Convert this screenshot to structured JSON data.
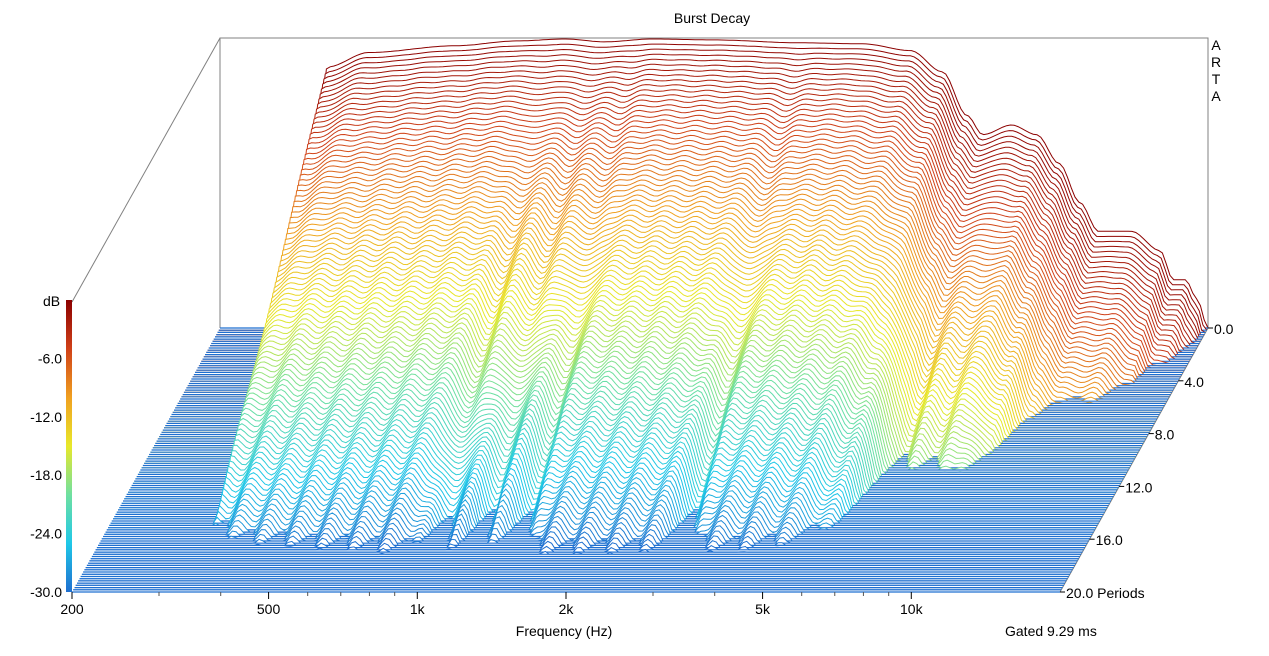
{
  "chart_data": {
    "type": "waterfall",
    "title": "Burst Decay",
    "brand": "ARTA",
    "xlabel": "Frequency (Hz)",
    "x_scale": "log",
    "x_range_hz": [
      200,
      20000
    ],
    "x_ticks": [
      {
        "value": 200,
        "label": "200"
      },
      {
        "value": 500,
        "label": "500"
      },
      {
        "value": 1000,
        "label": "1k"
      },
      {
        "value": 2000,
        "label": "2k"
      },
      {
        "value": 5000,
        "label": "5k"
      },
      {
        "value": 10000,
        "label": "10k"
      }
    ],
    "minor_ticks_hz": [
      300,
      400,
      600,
      700,
      800,
      900,
      3000,
      4000,
      6000,
      7000,
      8000,
      9000
    ],
    "z_label": "Periods",
    "z_range_periods": [
      0,
      20
    ],
    "z_ticks": [
      {
        "value": 0,
        "label": "0.0"
      },
      {
        "value": 4,
        "label": "4.0"
      },
      {
        "value": 8,
        "label": "8.0"
      },
      {
        "value": 12,
        "label": "12.0"
      },
      {
        "value": 16,
        "label": "16.0"
      },
      {
        "value": 20,
        "label": "20.0 Periods"
      }
    ],
    "colorbar": {
      "label": "dB",
      "range_db": [
        -30,
        0
      ],
      "ticks": [
        "-6.0",
        "-12.0",
        "-18.0",
        "-24.0",
        "-30.0"
      ],
      "tick_values": [
        -6,
        -12,
        -18,
        -24,
        -30
      ],
      "stops": [
        "#1f6fd0",
        "#1fc8e8",
        "#6fe0a0",
        "#e8e82a",
        "#f0a020",
        "#d04018",
        "#8b0000"
      ]
    },
    "gated_label": "Gated 9.29 ms",
    "slice_count": 120,
    "response_db_at_zero_periods": [
      {
        "hz": 300,
        "db": -30
      },
      {
        "hz": 330,
        "db": -3
      },
      {
        "hz": 400,
        "db": -1.5
      },
      {
        "hz": 600,
        "db": -0.8
      },
      {
        "hz": 800,
        "db": -0.3
      },
      {
        "hz": 1000,
        "db": -0.1
      },
      {
        "hz": 1200,
        "db": -0.4
      },
      {
        "hz": 1500,
        "db": -0.1
      },
      {
        "hz": 2000,
        "db": -0.2
      },
      {
        "hz": 3000,
        "db": -0.5
      },
      {
        "hz": 4000,
        "db": -0.6
      },
      {
        "hz": 5000,
        "db": -1.3
      },
      {
        "hz": 5800,
        "db": -3.5
      },
      {
        "hz": 6500,
        "db": -8
      },
      {
        "hz": 7000,
        "db": -10
      },
      {
        "hz": 8000,
        "db": -9
      },
      {
        "hz": 9000,
        "db": -10
      },
      {
        "hz": 10000,
        "db": -13
      },
      {
        "hz": 11000,
        "db": -17
      },
      {
        "hz": 12000,
        "db": -20
      },
      {
        "hz": 14000,
        "db": -20
      },
      {
        "hz": 16000,
        "db": -22
      },
      {
        "hz": 17000,
        "db": -25
      },
      {
        "hz": 18000,
        "db": -25
      },
      {
        "hz": 19000,
        "db": -27
      },
      {
        "hz": 20000,
        "db": -30
      }
    ],
    "decay_notches_hz": [
      950,
      1150,
      1400,
      3000,
      6800,
      8000
    ]
  }
}
